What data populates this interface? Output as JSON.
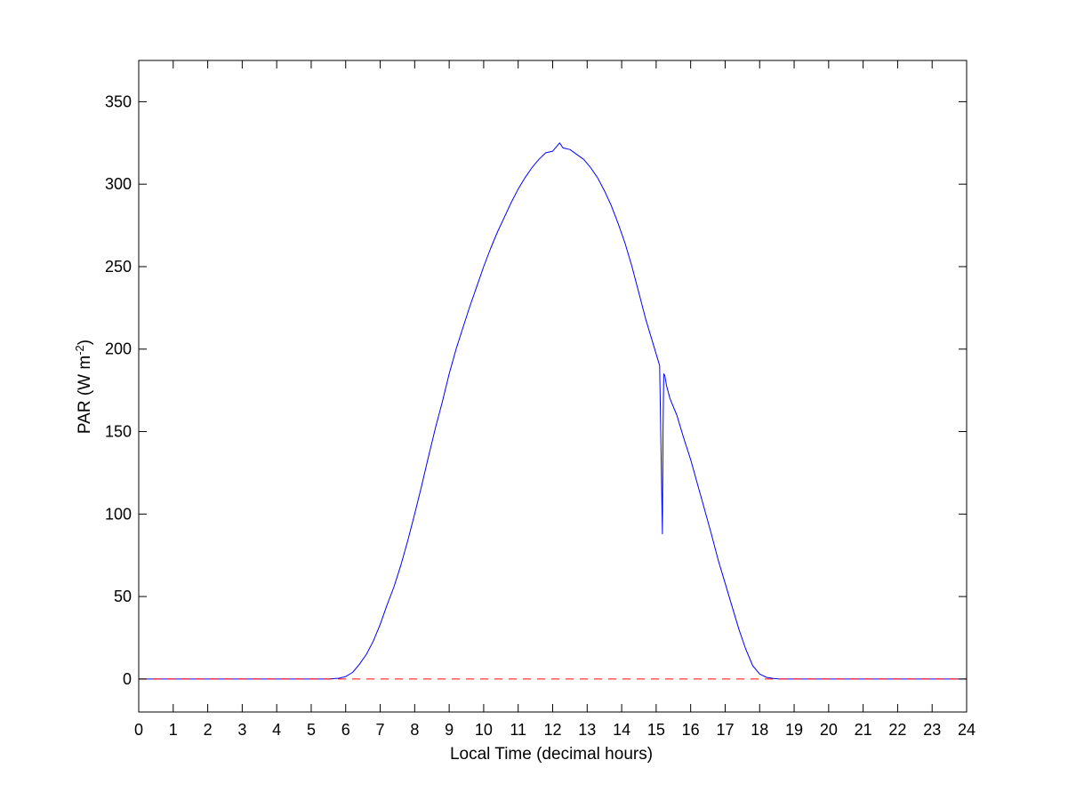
{
  "chart_data": {
    "type": "line",
    "title": "",
    "xlabel": "Local Time (decimal hours)",
    "ylabel": {
      "prefix": "PAR (W m",
      "superscript": "-2",
      "suffix": ")"
    },
    "xlim": [
      0,
      24
    ],
    "ylim": [
      -20,
      375
    ],
    "xticks": [
      0,
      1,
      2,
      3,
      4,
      5,
      6,
      7,
      8,
      9,
      10,
      11,
      12,
      13,
      14,
      15,
      16,
      17,
      18,
      19,
      20,
      21,
      22,
      23,
      24
    ],
    "yticks": [
      0,
      50,
      100,
      150,
      200,
      250,
      300,
      350
    ],
    "grid": false,
    "legend": "none",
    "series": [
      {
        "color": "#0000ff",
        "style": "solid",
        "x": [
          0,
          5.5,
          5.8,
          6.0,
          6.2,
          6.4,
          6.6,
          6.8,
          7.0,
          7.2,
          7.4,
          7.6,
          7.8,
          8.0,
          8.2,
          8.4,
          8.6,
          8.8,
          9.0,
          9.2,
          9.4,
          9.6,
          9.8,
          10.0,
          10.2,
          10.4,
          10.6,
          10.8,
          11.0,
          11.2,
          11.4,
          11.6,
          11.8,
          12.0,
          12.2,
          12.3,
          12.5,
          12.7,
          12.9,
          13.1,
          13.3,
          13.5,
          13.7,
          13.9,
          14.1,
          14.3,
          14.5,
          14.7,
          14.9,
          15.1,
          15.18,
          15.2,
          15.22,
          15.25,
          15.3,
          15.4,
          15.6,
          15.8,
          16.0,
          16.2,
          16.4,
          16.6,
          16.8,
          17.0,
          17.2,
          17.4,
          17.6,
          17.8,
          18.0,
          18.2,
          18.4,
          18.6,
          19.0,
          24
        ],
        "y": [
          0,
          0,
          0.5,
          1.5,
          4,
          9,
          15,
          23,
          33,
          45,
          56,
          69,
          84,
          100,
          117,
          135,
          152,
          168,
          185,
          200,
          213,
          226,
          238,
          250,
          261,
          271,
          280,
          289,
          297,
          304,
          310,
          315,
          319,
          320,
          325,
          322,
          321,
          318,
          315,
          310,
          304,
          296,
          287,
          276,
          264,
          250,
          234,
          218,
          204,
          190,
          88,
          150,
          185,
          184,
          178,
          170,
          160,
          146,
          133,
          118,
          103,
          88,
          72,
          58,
          44,
          30,
          18,
          8,
          3,
          1,
          0.3,
          0,
          0,
          0
        ]
      },
      {
        "color": "#ff0000",
        "style": "dashed",
        "x": [
          0,
          24
        ],
        "y": [
          0,
          0
        ]
      }
    ]
  }
}
